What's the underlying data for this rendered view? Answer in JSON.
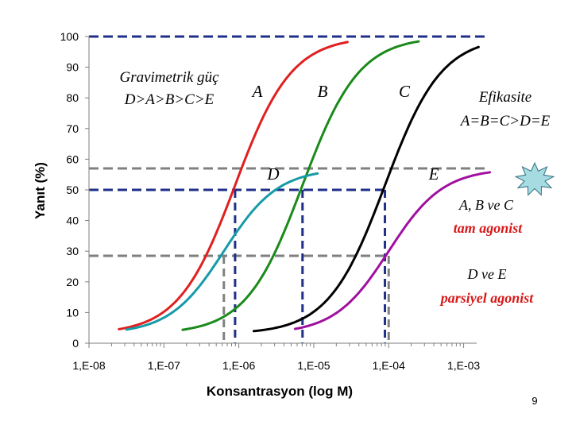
{
  "chart_data": {
    "type": "line",
    "title": "",
    "xlabel": "Konsantrasyon (log M)",
    "ylabel": "Yanıt (%)",
    "x_scale": "log10",
    "xlim_log": [
      -8,
      -2.9
    ],
    "ylim": [
      0,
      100
    ],
    "x_ticks": [
      {
        "log": -8,
        "label": "1,E-08"
      },
      {
        "log": -7,
        "label": "1,E-07"
      },
      {
        "log": -6,
        "label": "1,E-06"
      },
      {
        "log": -5,
        "label": "1,E-05"
      },
      {
        "log": -4,
        "label": "1,E-04"
      },
      {
        "log": -3,
        "label": "1,E-03"
      }
    ],
    "y_ticks": [
      0,
      10,
      20,
      30,
      40,
      50,
      60,
      70,
      80,
      90,
      100
    ],
    "series": [
      {
        "name": "A",
        "color": "#e02020",
        "emax": 100,
        "log_ec50": -6.05,
        "hill": 1.15,
        "bottom": 3,
        "log_x_range": [
          -7.6,
          -4.55
        ]
      },
      {
        "name": "B",
        "color": "#1a8a1a",
        "emax": 100,
        "log_ec50": -5.15,
        "hill": 1.15,
        "bottom": 3,
        "log_x_range": [
          -6.75,
          -3.6
        ]
      },
      {
        "name": "C",
        "color": "#000000",
        "emax": 100,
        "log_ec50": -4.05,
        "hill": 1.15,
        "bottom": 3,
        "log_x_range": [
          -5.8,
          -2.8
        ]
      },
      {
        "name": "D",
        "color": "#169aa8",
        "emax": 57,
        "log_ec50": -6.2,
        "hill": 1.2,
        "bottom": 3,
        "log_x_range": [
          -7.5,
          -4.95
        ]
      },
      {
        "name": "E",
        "color": "#a010a0",
        "emax": 57,
        "log_ec50": -4.0,
        "hill": 1.2,
        "bottom": 3,
        "log_x_range": [
          -5.25,
          -2.65
        ]
      }
    ],
    "reference_lines": [
      {
        "kind": "h",
        "y": 100,
        "color": "#1f2f8a",
        "log_from": -8,
        "log_to": -2.7
      },
      {
        "kind": "h",
        "y": 50,
        "color": "#1f2f8a",
        "log_from": -8,
        "log_to": -4.05
      },
      {
        "kind": "h",
        "y": 57,
        "color": "#808080",
        "log_from": -8,
        "log_to": -2.7
      },
      {
        "kind": "h",
        "y": 28.5,
        "color": "#808080",
        "log_from": -8,
        "log_to": -4.0
      },
      {
        "kind": "v",
        "log_x": -6.05,
        "y": 50,
        "color": "#1f2f8a"
      },
      {
        "kind": "v",
        "log_x": -5.15,
        "y": 50,
        "color": "#1f2f8a"
      },
      {
        "kind": "v",
        "log_x": -4.05,
        "y": 50,
        "color": "#1f2f8a"
      },
      {
        "kind": "v",
        "log_x": -6.2,
        "y": 28.5,
        "color": "#808080"
      },
      {
        "kind": "v",
        "log_x": -4.0,
        "y": 28.5,
        "color": "#808080"
      }
    ]
  },
  "annotations": {
    "potency_line1": "Gravimetrik güç",
    "potency_line2": "D>A>B>C>E",
    "efficacy_line1": "Efikasite",
    "efficacy_line2": "A=B=C>D=E",
    "label_a": "A",
    "label_b": "B",
    "label_c": "C",
    "label_d": "D",
    "label_e": "E",
    "full_agonist_line1": "A, B ve C",
    "full_agonist_line2": "tam agonist",
    "partial_agonist_line1": "D ve E",
    "partial_agonist_line2": "parsiyel agonist",
    "page_number": "9"
  },
  "colors": {
    "highlight_text": "#d81818",
    "star_fill": "#a6dbe2",
    "axis": "#7f7f7f"
  }
}
